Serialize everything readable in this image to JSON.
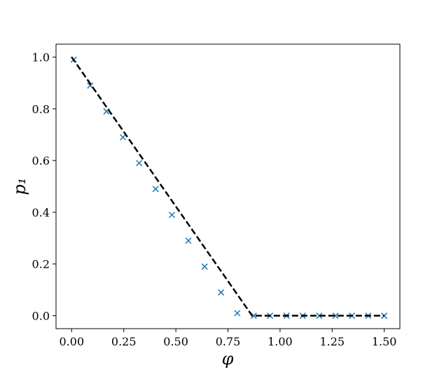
{
  "chart_data": {
    "type": "scatter",
    "xlabel": "φ",
    "ylabel": "p₁",
    "xlim": [
      -0.075,
      1.575
    ],
    "ylim": [
      -0.05,
      1.05
    ],
    "xticks": [
      {
        "value": 0,
        "label": "0.00"
      },
      0.25,
      {
        "value": 0.5,
        "label": "0.50"
      },
      0.75,
      {
        "value": 1,
        "label": "1.00"
      },
      1.25,
      {
        "value": 1.5,
        "label": "1.50"
      }
    ],
    "yticks": [
      {
        "value": 0,
        "label": "0.0"
      },
      0.2,
      0.4,
      0.6,
      0.8,
      {
        "value": 1,
        "label": "1.0"
      }
    ],
    "series": [
      {
        "type": "scatter",
        "color": "#1f77b4",
        "x": [
          0.01,
          0.089,
          0.167,
          0.246,
          0.324,
          0.403,
          0.481,
          0.56,
          0.638,
          0.717,
          0.795,
          0.874,
          0.952,
          1.031,
          1.109,
          1.188,
          1.266,
          1.345,
          1.423,
          1.5
        ],
        "values": [
          0.99,
          0.89,
          0.79,
          0.69,
          0.59,
          0.49,
          0.39,
          0.29,
          0.19,
          0.09,
          0.01,
          0,
          0,
          0,
          0,
          0,
          0,
          0,
          0,
          0
        ]
      },
      {
        "type": "line",
        "color": "#000000",
        "dashed": true,
        "x": [
          0,
          0.866,
          1.5
        ],
        "values": [
          1,
          0,
          0
        ]
      }
    ]
  }
}
